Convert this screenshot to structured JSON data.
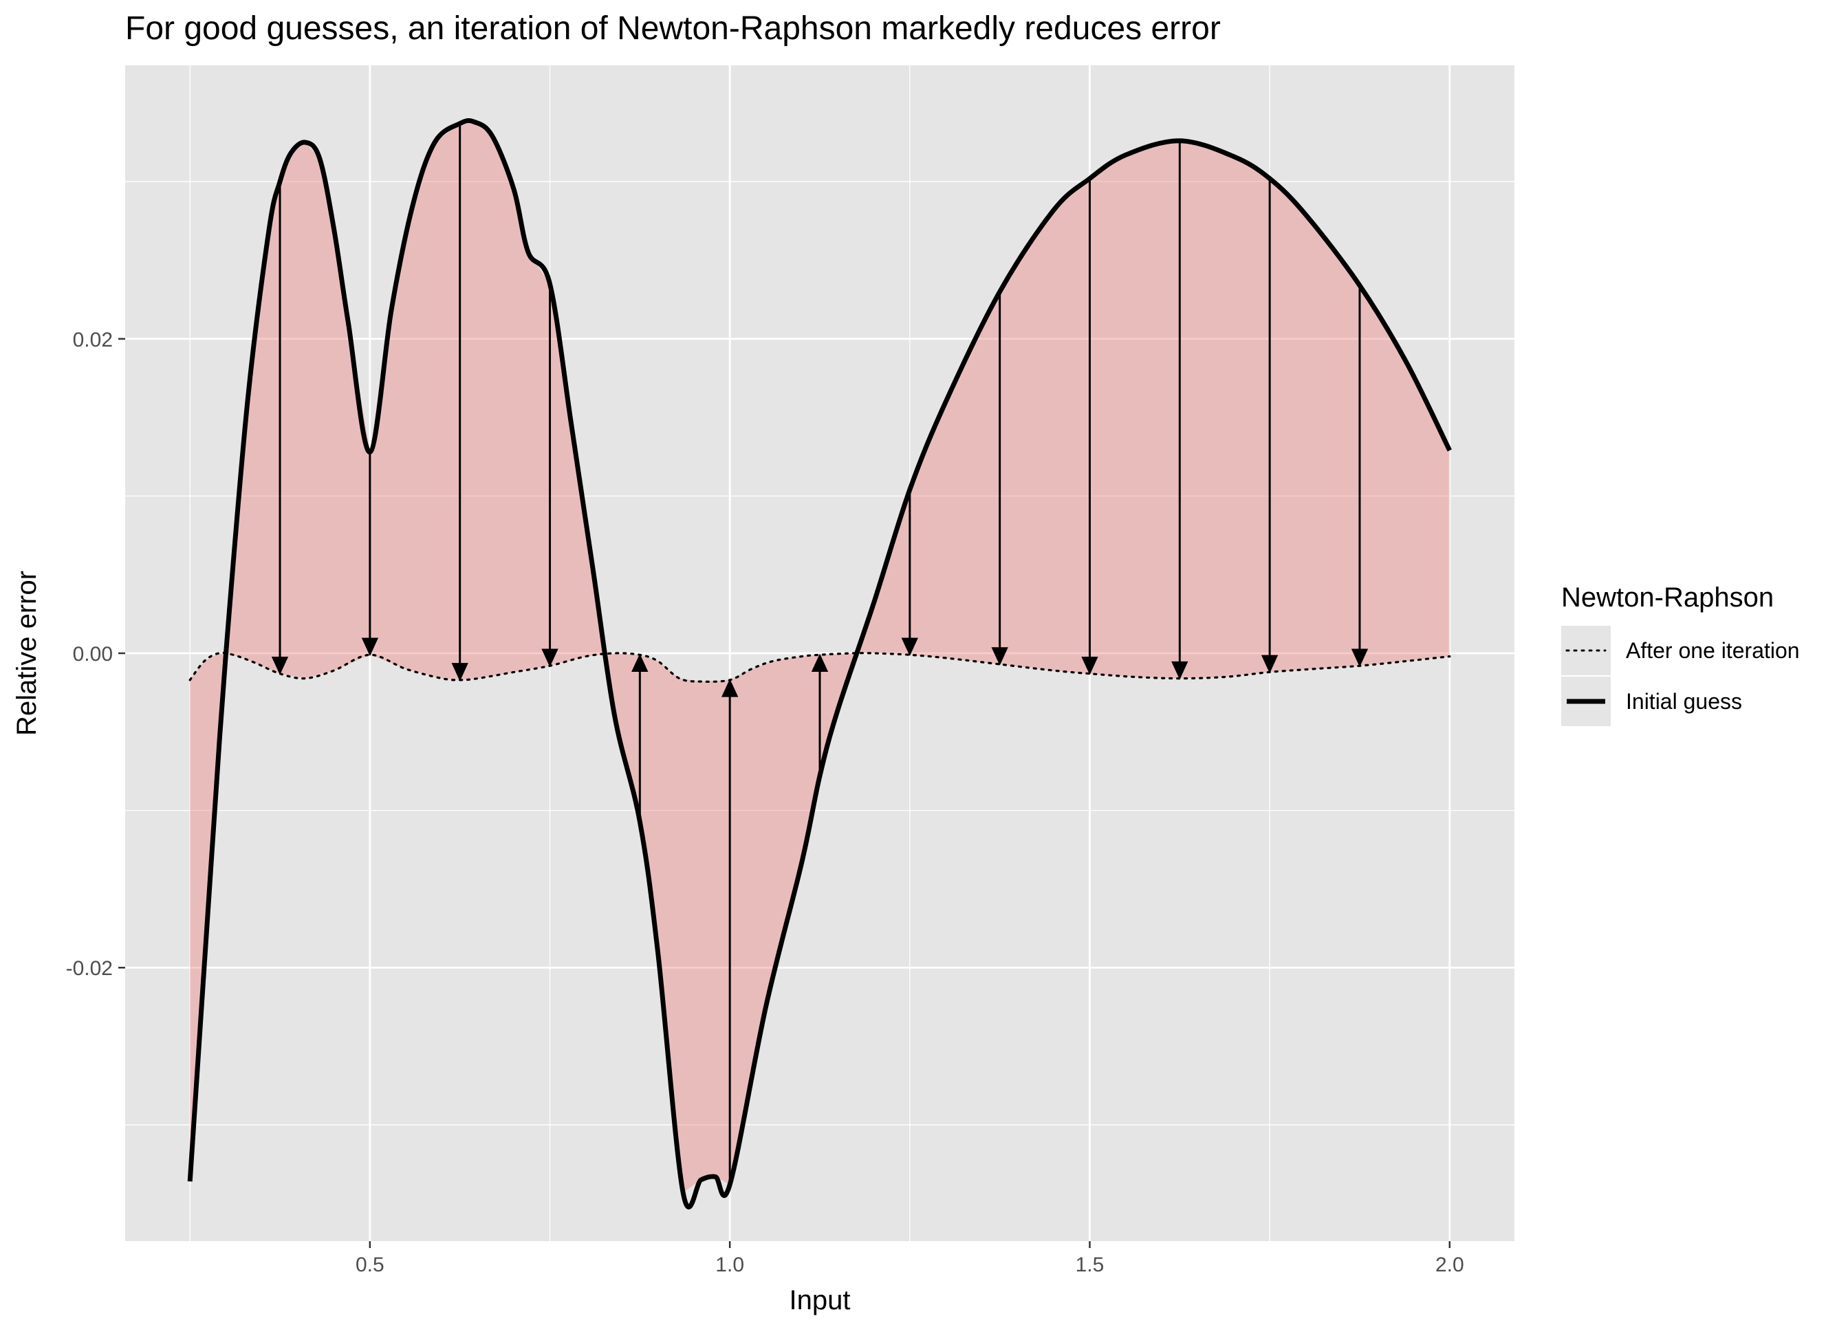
{
  "chart_data": {
    "type": "line",
    "title": "For good guesses, an iteration of Newton-Raphson markedly reduces error",
    "xlabel": "Input",
    "ylabel": "Relative error",
    "xlim": [
      0.16,
      2.09
    ],
    "ylim": [
      -0.0374,
      0.0374
    ],
    "x_ticks": [
      0.5,
      1.0,
      1.5,
      2.0
    ],
    "x_tick_labels": [
      "0.5",
      "1.0",
      "1.5",
      "2.0"
    ],
    "y_ticks": [
      -0.02,
      0.0,
      0.02
    ],
    "y_tick_labels": [
      "-0.02",
      "0.00",
      "0.02"
    ],
    "grid": true,
    "panel_background": "#e5e5e5",
    "fill_color": "#f08080",
    "legend": {
      "title": "Newton-Raphson",
      "position": "right",
      "entries": [
        {
          "label": "After one iteration",
          "linetype": "dotted"
        },
        {
          "label": "Initial guess",
          "linetype": "solid"
        }
      ]
    },
    "series": [
      {
        "name": "Initial guess",
        "linetype": "solid",
        "x": [
          0.25,
          0.28,
          0.3,
          0.33,
          0.36,
          0.375,
          0.39,
          0.41,
          0.43,
          0.45,
          0.47,
          0.5,
          0.53,
          0.56,
          0.59,
          0.625,
          0.645,
          0.67,
          0.7,
          0.72,
          0.75,
          0.78,
          0.81,
          0.84,
          0.875,
          0.9,
          0.935,
          0.96,
          0.98,
          1.0,
          1.05,
          1.1,
          1.125,
          1.15,
          1.2,
          1.25,
          1.3,
          1.375,
          1.45,
          1.5,
          1.55,
          1.625,
          1.7,
          1.75,
          1.8,
          1.875,
          1.94,
          2.0
        ],
        "y": [
          -0.0336,
          -0.013,
          0.0,
          0.016,
          0.027,
          0.03,
          0.0318,
          0.0325,
          0.0315,
          0.027,
          0.021,
          0.0128,
          0.0219,
          0.0286,
          0.0325,
          0.0337,
          0.0338,
          0.0329,
          0.0295,
          0.0255,
          0.0235,
          0.0145,
          0.0053,
          -0.004,
          -0.0107,
          -0.019,
          -0.0343,
          -0.0335,
          -0.0333,
          -0.0338,
          -0.0225,
          -0.0133,
          -0.0078,
          -0.0036,
          0.0032,
          0.0104,
          0.016,
          0.023,
          0.0282,
          0.0302,
          0.0317,
          0.0326,
          0.0316,
          0.0302,
          0.0279,
          0.0234,
          0.0185,
          0.0129
        ]
      },
      {
        "name": "After one iteration",
        "linetype": "dotted",
        "x": [
          0.25,
          0.27,
          0.29,
          0.31,
          0.34,
          0.375,
          0.41,
          0.45,
          0.5,
          0.55,
          0.6,
          0.625,
          0.65,
          0.7,
          0.75,
          0.8,
          0.84,
          0.875,
          0.9,
          0.93,
          0.96,
          1.0,
          1.03,
          1.06,
          1.1,
          1.125,
          1.17,
          1.2,
          1.25,
          1.3,
          1.375,
          1.45,
          1.5,
          1.56,
          1.625,
          1.69,
          1.75,
          1.81,
          1.875,
          1.94,
          2.0
        ],
        "y": [
          -0.0017,
          -0.0005,
          0.0,
          -0.0001,
          -0.0006,
          -0.0013,
          -0.0016,
          -0.0011,
          -0.0001,
          -0.001,
          -0.0016,
          -0.0017,
          -0.0016,
          -0.0012,
          -0.0008,
          -0.0002,
          0.0,
          -0.0001,
          -0.0005,
          -0.0016,
          -0.0018,
          -0.0017,
          -0.001,
          -0.0005,
          -0.0002,
          -0.0001,
          0.0,
          0.0,
          -0.0001,
          -0.0003,
          -0.0007,
          -0.0011,
          -0.0013,
          -0.0015,
          -0.0016,
          -0.0015,
          -0.0012,
          -0.001,
          -0.0008,
          -0.0005,
          -0.0002
        ]
      }
    ],
    "arrows": [
      {
        "x": 0.375,
        "from": 0.03,
        "to": -0.0013
      },
      {
        "x": 0.5,
        "from": 0.0128,
        "to": -0.0001
      },
      {
        "x": 0.625,
        "from": 0.0337,
        "to": -0.0017
      },
      {
        "x": 0.75,
        "from": 0.0235,
        "to": -0.0008
      },
      {
        "x": 0.875,
        "from": -0.0107,
        "to": -0.0001
      },
      {
        "x": 1.0,
        "from": -0.0338,
        "to": -0.0017
      },
      {
        "x": 1.125,
        "from": -0.0078,
        "to": -0.0001
      },
      {
        "x": 1.25,
        "from": 0.0104,
        "to": -0.0001
      },
      {
        "x": 1.375,
        "from": 0.023,
        "to": -0.0007
      },
      {
        "x": 1.5,
        "from": 0.0302,
        "to": -0.0013
      },
      {
        "x": 1.625,
        "from": 0.0326,
        "to": -0.0016
      },
      {
        "x": 1.75,
        "from": 0.0302,
        "to": -0.0012
      },
      {
        "x": 1.875,
        "from": 0.0234,
        "to": -0.0008
      }
    ]
  }
}
